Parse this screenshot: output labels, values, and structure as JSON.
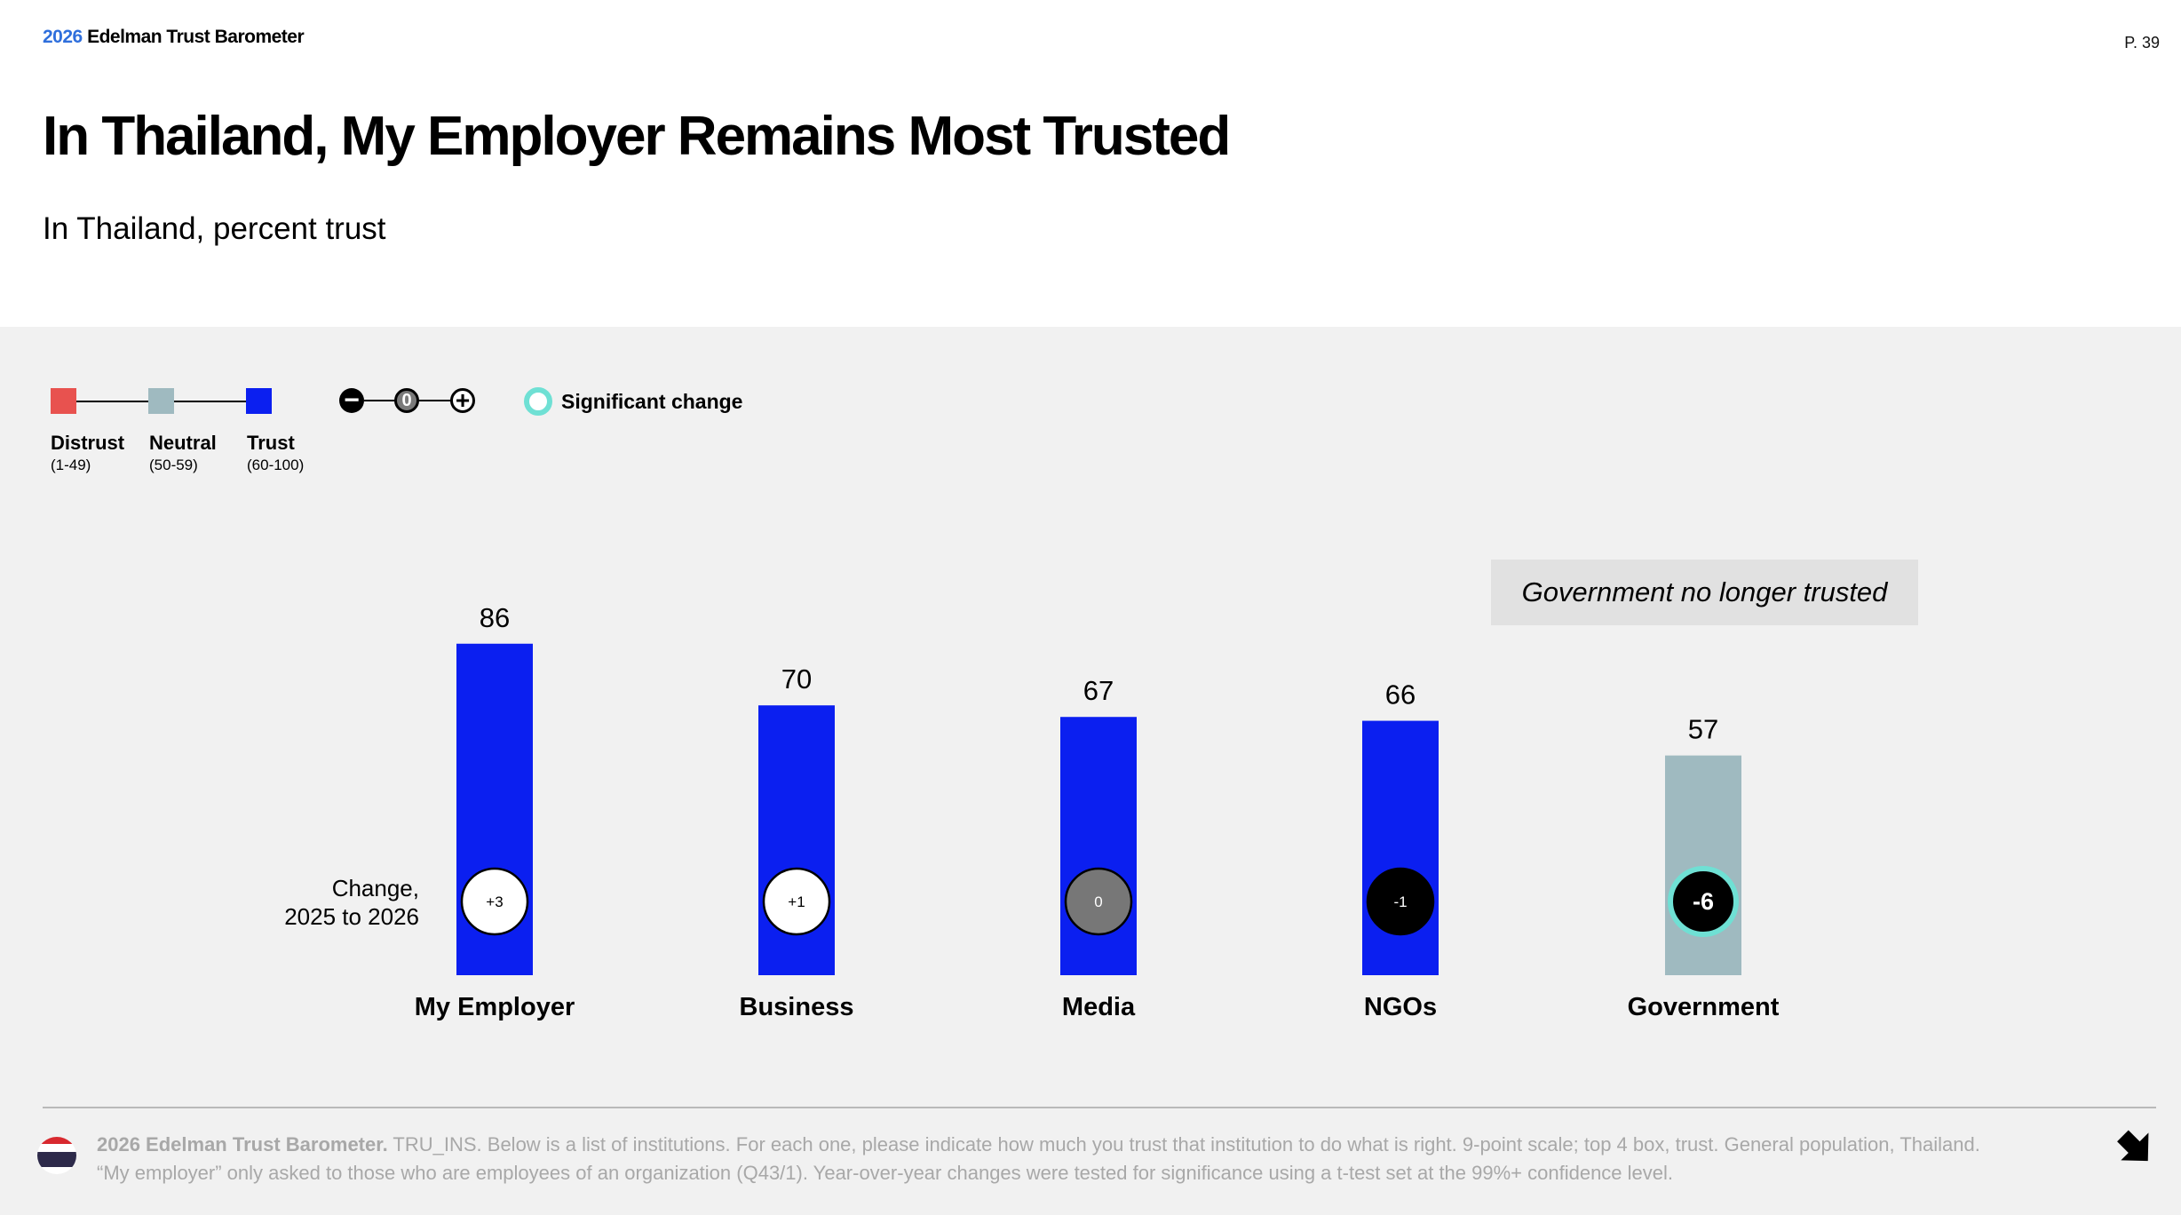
{
  "header": {
    "brand_year": "2026",
    "brand_name": "Edelman Trust Barometer",
    "page_number": "P. 39",
    "title": "In Thailand, My Employer Remains Most Trusted",
    "subtitle": "In Thailand, percent trust"
  },
  "legend": {
    "scale": [
      {
        "name": "Distrust",
        "range": "(1-49)",
        "color": "#e8524f"
      },
      {
        "name": "Neutral",
        "range": "(50-59)",
        "color": "#9fbac0"
      },
      {
        "name": "Trust",
        "range": "(60-100)",
        "color": "#0b1ff0"
      }
    ],
    "change_symbols": [
      "−",
      "0",
      "+"
    ],
    "significant_change_label": "Significant change"
  },
  "callout": "Government no longer trusted",
  "change_label": "Change,\n2025 to 2026",
  "chart_data": {
    "type": "bar",
    "categories": [
      "My Employer",
      "Business",
      "Media",
      "NGOs",
      "Government"
    ],
    "values": [
      86,
      70,
      67,
      66,
      57
    ],
    "changes": [
      "+3",
      "+1",
      "0",
      "-1",
      "-6"
    ],
    "significant": [
      false,
      false,
      false,
      false,
      true
    ],
    "bar_colors": [
      "#0b1ff0",
      "#0b1ff0",
      "#0b1ff0",
      "#0b1ff0",
      "#9fbac0"
    ],
    "ylim": [
      0,
      100
    ],
    "grid": false
  },
  "footer": {
    "source_bold": "2026 Edelman Trust Barometer.",
    "source_text": " TRU_INS. Below is a list of institutions. For each one, please indicate how much you trust that institution to do what is right. 9-point scale; top 4 box, trust. General population, Thailand. “My employer” only asked to those who are employees of an organization (Q43/1). Year-over-year changes were tested for significance using a t-test set at the 99%+ confidence level."
  }
}
